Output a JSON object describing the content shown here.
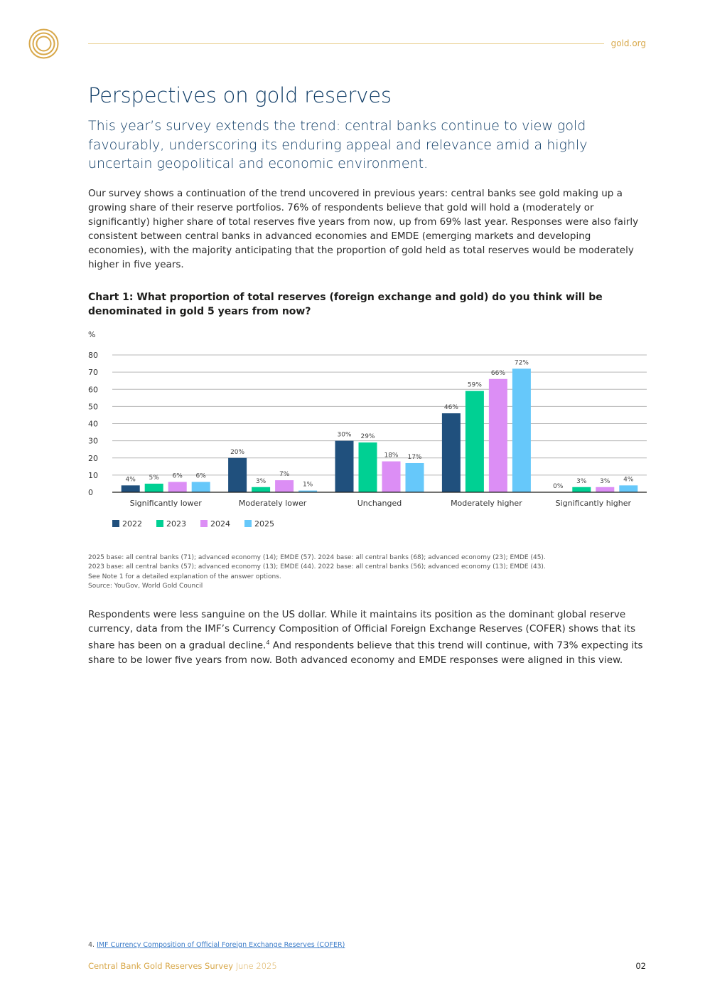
{
  "header": {
    "site_link": "gold.org"
  },
  "page_title": "Perspectives on gold reserves",
  "lead": "This year’s survey extends the trend: central banks continue to view gold favourably, underscoring its enduring appeal and relevance amid a highly uncertain geopolitical and economic environment.",
  "paragraph_1": "Our survey shows a continuation of the trend uncovered in previous years: central banks see gold making up a growing share of their reserve portfolios. 76% of respondents believe that gold will hold a (moderately or significantly) higher share of total reserves five years from now, up from 69% last year. Responses were also fairly consistent between central banks in advanced economies and EMDE (emerging markets and developing economies), with the majority anticipating that the proportion of gold held as total reserves would be moderately higher in five years.",
  "chart_title": "Chart 1: What proportion of total reserves (foreign exchange and gold) do you think will be denominated in gold 5 years from now?",
  "chart_data": {
    "type": "bar",
    "ylabel": "%",
    "ylim": [
      0,
      80
    ],
    "yticks": [
      "0",
      "10",
      "20",
      "30",
      "40",
      "50",
      "60",
      "70",
      "80"
    ],
    "grid": true,
    "legend_position": "bottom-left",
    "categories": [
      "Significantly lower",
      "Moderately lower",
      "Unchanged",
      "Moderately higher",
      "Significantly higher"
    ],
    "series": [
      {
        "name": "2022",
        "color": "#20507d",
        "values": [
          4,
          20,
          30,
          46,
          0
        ],
        "labels": [
          "4%",
          "20%",
          "30%",
          "46%",
          "0%"
        ]
      },
      {
        "name": "2023",
        "color": "#00d093",
        "values": [
          5,
          3,
          29,
          59,
          3
        ],
        "labels": [
          "5%",
          "3%",
          "29%",
          "59%",
          "3%"
        ]
      },
      {
        "name": "2024",
        "color": "#dc8ef5",
        "values": [
          6,
          7,
          18,
          66,
          3
        ],
        "labels": [
          "6%",
          "7%",
          "18%",
          "66%",
          "3%"
        ]
      },
      {
        "name": "2025",
        "color": "#66c8fa",
        "values": [
          6,
          1,
          17,
          72,
          4
        ],
        "labels": [
          "6%",
          "1%",
          "17%",
          "72%",
          "4%"
        ]
      }
    ]
  },
  "chart_notes": [
    "2025 base: all central banks (71); advanced economy (14); EMDE (57). 2024 base: all central banks (68); advanced economy (23); EMDE (45).",
    "2023 base: all central banks (57); advanced economy (13); EMDE (44). 2022 base: all central banks (56); advanced economy (13); EMDE (43).",
    "See Note 1 for a detailed explanation of the answer options.",
    "Source: YouGov, World Gold Council"
  ],
  "paragraph_2_before": "Respondents were less sanguine on the US dollar. While it maintains its position as the dominant global reserve currency, data from the IMF’s Currency Composition of Official Foreign Exchange Reserves (COFER) shows that its share has been on a gradual decline.",
  "paragraph_2_ref": "4",
  "paragraph_2_after": " And respondents believe that this trend will continue, with 73% expecting its share to be lower five years from now. Both advanced economy and EMDE responses were aligned in this view.",
  "footnote": {
    "number": "4.",
    "link_text": "IMF Currency Composition of Official Foreign Exchange Reserves (COFER)"
  },
  "footer": {
    "title": "Central Bank Gold Reserves Survey",
    "date": "June 2025",
    "page_number": "02"
  },
  "colors": {
    "brand_gold": "#d8a84a",
    "title_navy": "#0f3c66"
  }
}
